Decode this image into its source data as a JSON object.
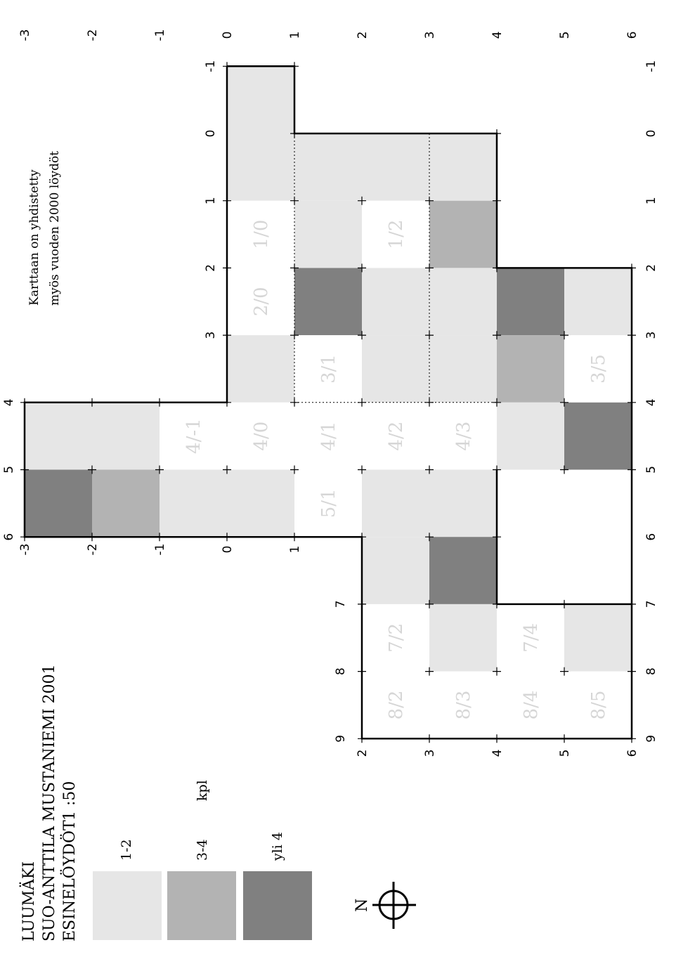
{
  "title": {
    "line1": "LUUMÄKI",
    "line2": "SUO-ANTTILA MUSTANIEMI 2001",
    "line3": "ESINELÖYDÖT",
    "scale": "1 :50"
  },
  "note": {
    "line1": "Karttaan on yhdistetty",
    "line2": "myös vuoden 2000 löydöt"
  },
  "legend": {
    "unit": "kpl",
    "items": [
      {
        "label": "1-2",
        "color": "#e6e6e6"
      },
      {
        "label": "3-4",
        "color": "#b3b3b3"
      },
      {
        "label": "yli 4",
        "color": "#808080"
      }
    ]
  },
  "north": {
    "label": "N"
  },
  "axes": {
    "row_labels": [
      "-3",
      "-2",
      "-1",
      "0",
      "1",
      "2",
      "3",
      "4",
      "5",
      "6"
    ],
    "col_labels": [
      "-1",
      "0",
      "1",
      "2",
      "3",
      "4",
      "5",
      "6",
      "7",
      "8",
      "9"
    ]
  },
  "cells": [
    {
      "r": 0,
      "c": -1,
      "level": 1
    },
    {
      "r": 0,
      "c": 0,
      "level": 1
    },
    {
      "r": 1,
      "c": 0,
      "level": 1
    },
    {
      "r": 2,
      "c": 0,
      "level": 1
    },
    {
      "r": 3,
      "c": 0,
      "level": 1
    },
    {
      "r": 0,
      "c": 1,
      "level": 0,
      "label": "1/0"
    },
    {
      "r": 1,
      "c": 1,
      "level": 1
    },
    {
      "r": 2,
      "c": 1,
      "level": 0,
      "label": "1/2"
    },
    {
      "r": 3,
      "c": 1,
      "level": 2
    },
    {
      "r": 0,
      "c": 2,
      "level": 0,
      "label": "2/0"
    },
    {
      "r": 1,
      "c": 2,
      "level": 3
    },
    {
      "r": 2,
      "c": 2,
      "level": 1
    },
    {
      "r": 3,
      "c": 2,
      "level": 1
    },
    {
      "r": 4,
      "c": 2,
      "level": 3
    },
    {
      "r": 5,
      "c": 2,
      "level": 1
    },
    {
      "r": 0,
      "c": 3,
      "level": 1
    },
    {
      "r": 1,
      "c": 3,
      "level": 0,
      "label": "3/1"
    },
    {
      "r": 2,
      "c": 3,
      "level": 1
    },
    {
      "r": 3,
      "c": 3,
      "level": 1
    },
    {
      "r": 4,
      "c": 3,
      "level": 2
    },
    {
      "r": 5,
      "c": 3,
      "level": 0,
      "label": "3/5"
    },
    {
      "r": -3,
      "c": 4,
      "level": 1
    },
    {
      "r": -2,
      "c": 4,
      "level": 1
    },
    {
      "r": -1,
      "c": 4,
      "level": 0,
      "label": "4/-1"
    },
    {
      "r": 0,
      "c": 4,
      "level": 0,
      "label": "4/0"
    },
    {
      "r": 1,
      "c": 4,
      "level": 0,
      "label": "4/1"
    },
    {
      "r": 2,
      "c": 4,
      "level": 0,
      "label": "4/2"
    },
    {
      "r": 3,
      "c": 4,
      "level": 0,
      "label": "4/3"
    },
    {
      "r": 4,
      "c": 4,
      "level": 1
    },
    {
      "r": 5,
      "c": 4,
      "level": 3
    },
    {
      "r": -3,
      "c": 5,
      "level": 3
    },
    {
      "r": -2,
      "c": 5,
      "level": 2
    },
    {
      "r": -1,
      "c": 5,
      "level": 1
    },
    {
      "r": 0,
      "c": 5,
      "level": 1
    },
    {
      "r": 1,
      "c": 5,
      "level": 0,
      "label": "5/1"
    },
    {
      "r": 2,
      "c": 5,
      "level": 1
    },
    {
      "r": 3,
      "c": 5,
      "level": 1
    },
    {
      "r": 2,
      "c": 6,
      "level": 1
    },
    {
      "r": 3,
      "c": 6,
      "level": 3
    },
    {
      "r": 2,
      "c": 7,
      "level": 0,
      "label": "7/2"
    },
    {
      "r": 3,
      "c": 7,
      "level": 1
    },
    {
      "r": 4,
      "c": 7,
      "level": 0,
      "label": "7/4"
    },
    {
      "r": 5,
      "c": 7,
      "level": 1
    },
    {
      "r": 2,
      "c": 8,
      "level": 0,
      "label": "8/2"
    },
    {
      "r": 3,
      "c": 8,
      "level": 0,
      "label": "8/3"
    },
    {
      "r": 4,
      "c": 8,
      "level": 0,
      "label": "8/4"
    },
    {
      "r": 5,
      "c": 8,
      "level": 0,
      "label": "8/5"
    }
  ],
  "level_colors": [
    "#ffffff",
    "#e6e6e6",
    "#b3b3b3",
    "#808080"
  ]
}
